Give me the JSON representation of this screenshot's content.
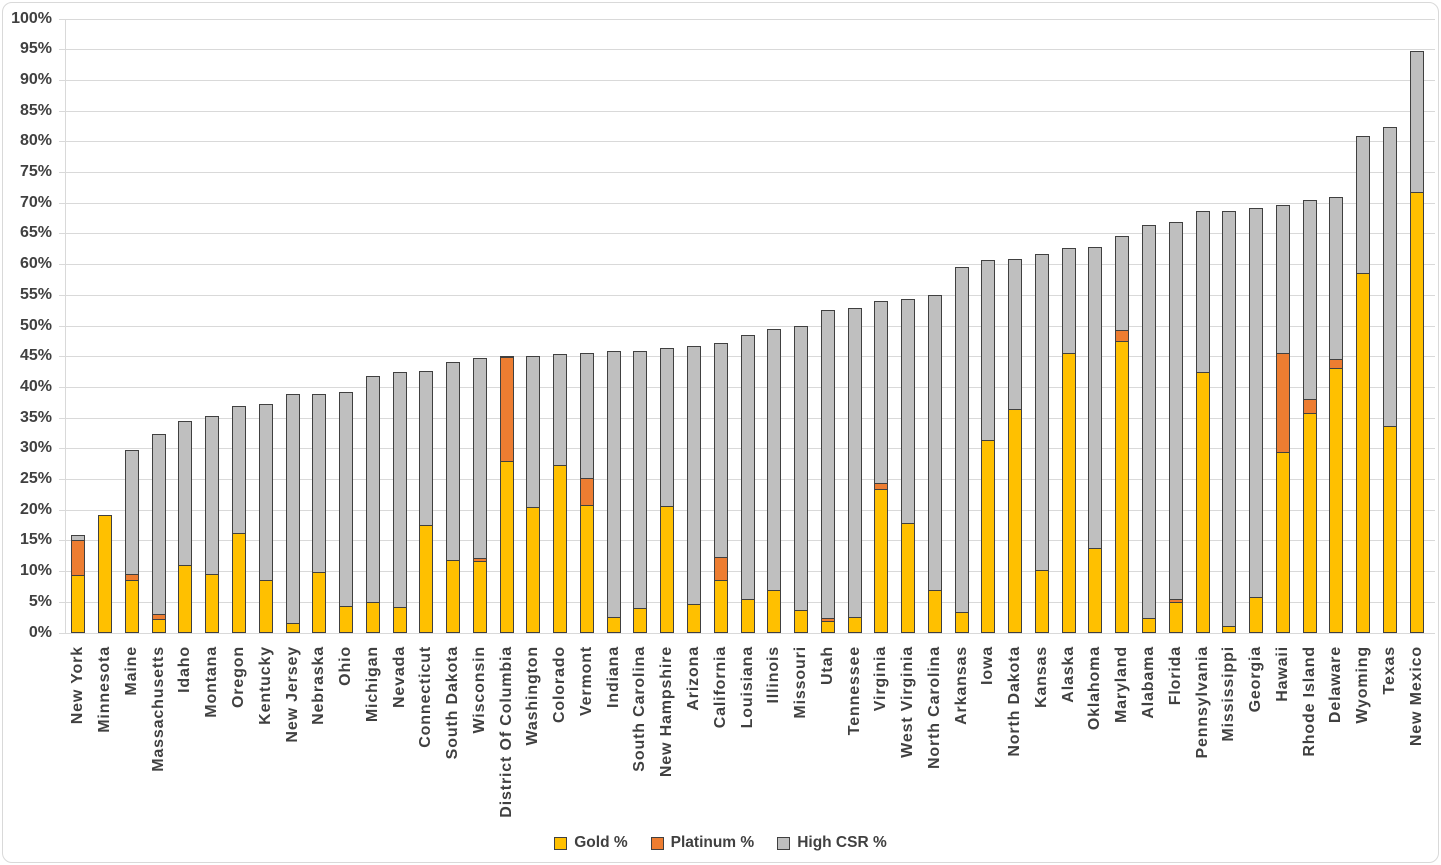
{
  "chart_data": {
    "type": "bar",
    "stacked": true,
    "categories": [
      "New York",
      "Minnesota",
      "Maine",
      "Massachusetts",
      "Idaho",
      "Montana",
      "Oregon",
      "Kentucky",
      "New Jersey",
      "Nebraska",
      "Ohio",
      "Michigan",
      "Nevada",
      "Connecticut",
      "South Dakota",
      "Wisconsin",
      "District Of Columbia",
      "Washington",
      "Colorado",
      "Vermont",
      "Indiana",
      "South Carolina",
      "New Hampshire",
      "Arizona",
      "California",
      "Louisiana",
      "Illinois",
      "Missouri",
      "Utah",
      "Tennessee",
      "Virginia",
      "West Virginia",
      "North Carolina",
      "Arkansas",
      "Iowa",
      "North Dakota",
      "Kansas",
      "Alaska",
      "Oklahoma",
      "Maryland",
      "Alabama",
      "Florida",
      "Pennsylvania",
      "Mississippi",
      "Georgia",
      "Hawaii",
      "Rhode Island",
      "Delaware",
      "Wyoming",
      "Texas",
      "New Mexico"
    ],
    "series": [
      {
        "name": "Gold %",
        "color": "#FFC000",
        "values": [
          9.4,
          19.2,
          8.6,
          2.2,
          11.0,
          9.5,
          16.2,
          8.6,
          1.6,
          9.9,
          4.3,
          5.0,
          4.2,
          17.5,
          11.8,
          11.7,
          27.9,
          20.4,
          27.2,
          20.7,
          2.6,
          4.0,
          20.6,
          4.7,
          8.5,
          5.4,
          7.0,
          3.6,
          1.9,
          2.5,
          23.4,
          17.8,
          7.0,
          3.4,
          31.4,
          36.4,
          10.2,
          45.5,
          13.8,
          47.5,
          2.4,
          4.9,
          42.4,
          1.1,
          5.8,
          29.4,
          35.7,
          43.0,
          58.5,
          33.6,
          71.8
        ]
      },
      {
        "name": "Platinum %",
        "color": "#ED7D31",
        "values": [
          5.7,
          0,
          1.0,
          0.8,
          0,
          0,
          0,
          0,
          0,
          0,
          0,
          0,
          0,
          0,
          0,
          0.5,
          16.9,
          0,
          0,
          4.4,
          0,
          0,
          0,
          0,
          3.8,
          0,
          0,
          0,
          0.5,
          0,
          1.0,
          0,
          0,
          0,
          0,
          0,
          0,
          0,
          0,
          1.8,
          0,
          0.5,
          0,
          0,
          0,
          16.1,
          2.4,
          1.5,
          0,
          0,
          0
        ]
      },
      {
        "name": "High CSR %",
        "color": "#BFBFBF",
        "values": [
          0.8,
          0,
          20.1,
          29.3,
          23.4,
          25.7,
          20.7,
          28.6,
          37.3,
          29.0,
          34.8,
          36.8,
          38.2,
          25.1,
          32.3,
          32.5,
          0.3,
          24.7,
          18.2,
          20.5,
          43.2,
          41.9,
          25.7,
          41.9,
          34.9,
          43.1,
          42.4,
          46.3,
          50.2,
          50.4,
          29.6,
          36.5,
          48.0,
          56.2,
          29.3,
          24.5,
          51.5,
          17.1,
          49.0,
          15.3,
          64.0,
          61.5,
          26.2,
          67.6,
          63.4,
          24.1,
          32.4,
          26.4,
          22.4,
          48.7,
          22.9
        ]
      }
    ],
    "title": "",
    "xlabel": "",
    "ylabel": "",
    "ylim": [
      0,
      100
    ],
    "ytick_step": 5,
    "ytick_labels": [
      "0%",
      "5%",
      "10%",
      "15%",
      "20%",
      "25%",
      "30%",
      "35%",
      "40%",
      "45%",
      "50%",
      "55%",
      "60%",
      "65%",
      "70%",
      "75%",
      "80%",
      "85%",
      "90%",
      "95%",
      "100%"
    ],
    "grid": true,
    "legend_position": "bottom",
    "gridline_color": "#d9d9d9",
    "text_color": "#404040",
    "bar_border_color": "#404040"
  }
}
